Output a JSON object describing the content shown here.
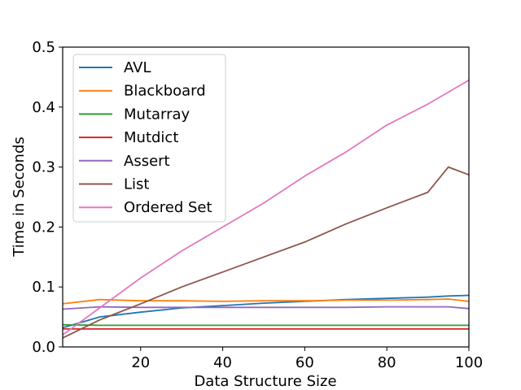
{
  "chart_data": {
    "type": "line",
    "title": "",
    "xlabel": "Data Structure Size",
    "ylabel": "Time in Seconds",
    "xlim": [
      1,
      100
    ],
    "ylim": [
      0,
      0.5
    ],
    "xticks": [
      20,
      40,
      60,
      80,
      100
    ],
    "yticks": [
      0.0,
      0.1,
      0.2,
      0.3,
      0.4,
      0.5
    ],
    "grid": false,
    "legend": "top-left",
    "x": [
      1,
      10,
      20,
      30,
      40,
      50,
      60,
      70,
      80,
      90,
      95,
      100
    ],
    "series": [
      {
        "name": "AVL",
        "color": "#1f77b4",
        "values": [
          0.032,
          0.05,
          0.058,
          0.065,
          0.069,
          0.073,
          0.076,
          0.079,
          0.081,
          0.083,
          0.085,
          0.086
        ]
      },
      {
        "name": "Blackboard",
        "color": "#ff7f0e",
        "values": [
          0.072,
          0.079,
          0.077,
          0.077,
          0.076,
          0.077,
          0.077,
          0.078,
          0.078,
          0.079,
          0.08,
          0.076
        ]
      },
      {
        "name": "Mutarray",
        "color": "#2ca02c",
        "values": [
          0.037,
          0.036,
          0.036,
          0.036,
          0.036,
          0.036,
          0.036,
          0.036,
          0.036,
          0.036,
          0.036,
          0.036
        ]
      },
      {
        "name": "Mutdict",
        "color": "#d62728",
        "values": [
          0.03,
          0.03,
          0.03,
          0.03,
          0.03,
          0.03,
          0.03,
          0.03,
          0.03,
          0.03,
          0.03,
          0.03
        ]
      },
      {
        "name": "Assert",
        "color": "#9467bd",
        "values": [
          0.063,
          0.067,
          0.066,
          0.066,
          0.066,
          0.066,
          0.066,
          0.066,
          0.067,
          0.067,
          0.067,
          0.064
        ]
      },
      {
        "name": "List",
        "color": "#8c564b",
        "values": [
          0.015,
          0.045,
          0.072,
          0.1,
          0.125,
          0.15,
          0.175,
          0.205,
          0.232,
          0.258,
          0.3,
          0.287
        ]
      },
      {
        "name": "Ordered Set",
        "color": "#e377c2",
        "values": [
          0.02,
          0.065,
          0.115,
          0.16,
          0.2,
          0.24,
          0.285,
          0.325,
          0.37,
          0.405,
          0.425,
          0.445
        ]
      }
    ]
  }
}
